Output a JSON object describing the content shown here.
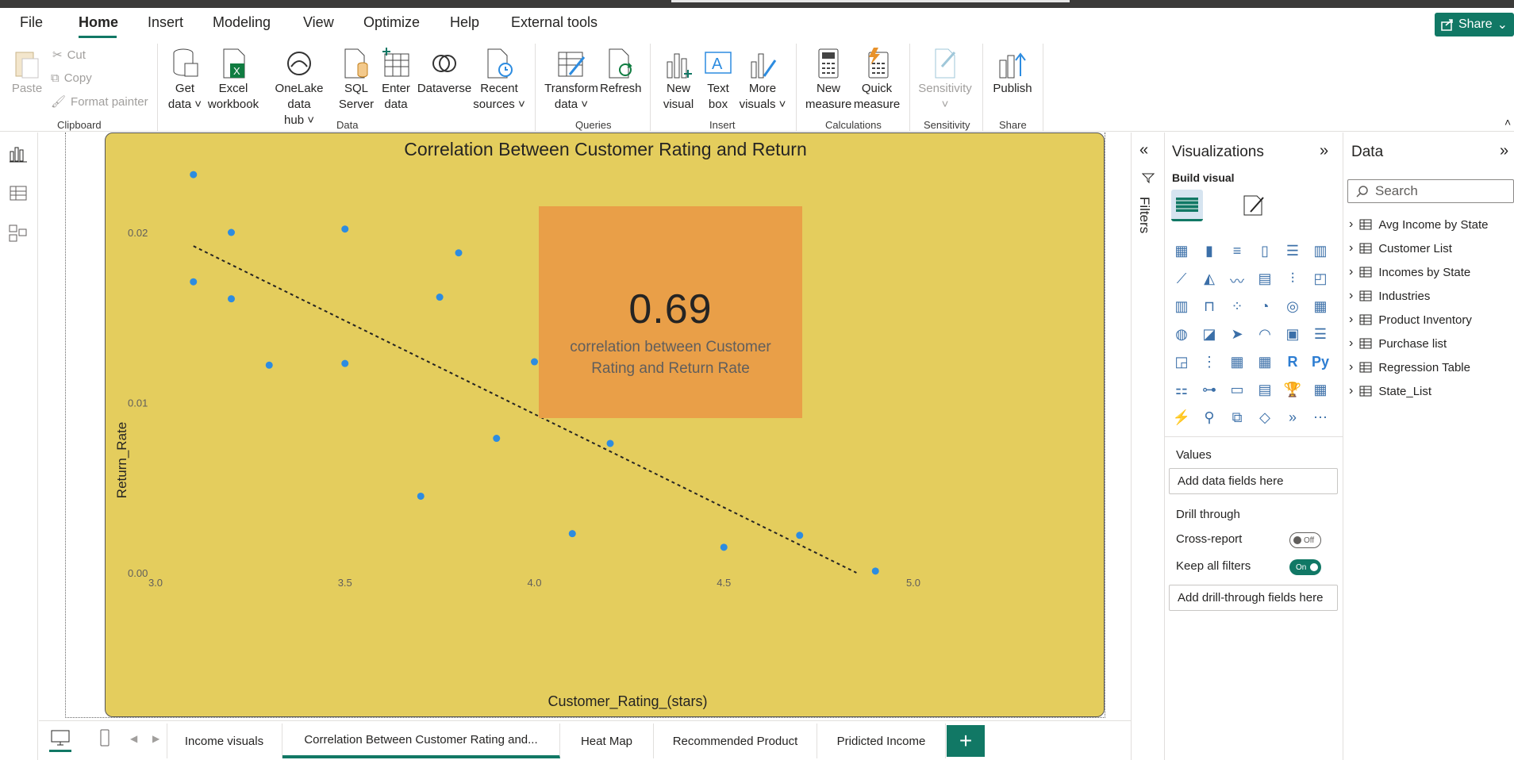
{
  "menu": {
    "tabs": [
      "File",
      "Home",
      "Insert",
      "Modeling",
      "View",
      "Optimize",
      "Help",
      "External tools"
    ],
    "active_tab": "Home",
    "share_label": "Share"
  },
  "ribbon": {
    "clipboard": {
      "paste": "Paste",
      "cut": "Cut",
      "copy": "Copy",
      "format_painter": "Format painter",
      "group": "Clipboard"
    },
    "data": {
      "get_data": [
        "Get",
        "data"
      ],
      "excel": [
        "Excel",
        "workbook"
      ],
      "onelake": [
        "OneLake data",
        "hub"
      ],
      "sql": [
        "SQL",
        "Server"
      ],
      "enter": [
        "Enter",
        "data"
      ],
      "dataverse": "Dataverse",
      "recent": [
        "Recent",
        "sources"
      ],
      "group": "Data"
    },
    "queries": {
      "transform": [
        "Transform",
        "data"
      ],
      "refresh": "Refresh",
      "group": "Queries"
    },
    "insert": {
      "new_visual": [
        "New",
        "visual"
      ],
      "text_box": [
        "Text",
        "box"
      ],
      "more_visuals": [
        "More",
        "visuals"
      ],
      "group": "Insert"
    },
    "calculations": {
      "new_measure": [
        "New",
        "measure"
      ],
      "quick_measure": [
        "Quick",
        "measure"
      ],
      "group": "Calculations"
    },
    "sensitivity": {
      "label": "Sensitivity",
      "group": "Sensitivity"
    },
    "share": {
      "publish": "Publish",
      "group": "Share"
    }
  },
  "visual": {
    "card_value": "0.69",
    "card_label": "correlation between Customer Rating and Return Rate"
  },
  "chart_data": {
    "type": "scatter",
    "title": "Correlation Between Customer Rating and Return",
    "xlabel": "Customer_Rating_(stars)",
    "ylabel": "Return_Rate",
    "xlim": [
      3.0,
      5.0
    ],
    "ylim": [
      0.0,
      0.022
    ],
    "x_ticks": [
      "3.0",
      "3.5",
      "4.0",
      "4.5",
      "5.0"
    ],
    "y_ticks": [
      "0.00",
      "0.01",
      "0.02"
    ],
    "point_color": "#2d8ce0",
    "x": [
      3.1,
      3.1,
      3.2,
      3.2,
      3.3,
      3.5,
      3.5,
      3.7,
      3.75,
      3.8,
      3.9,
      4.0,
      4.1,
      4.2,
      4.5,
      4.7,
      4.9
    ],
    "y": [
      0.0234,
      0.0171,
      0.02,
      0.0161,
      0.0122,
      0.0202,
      0.0123,
      0.0045,
      0.0162,
      0.0188,
      0.0079,
      0.0124,
      0.0023,
      0.0076,
      0.0015,
      0.0022,
      0.0001
    ],
    "trendline": {
      "style": "dashed",
      "x": [
        3.1,
        4.85
      ],
      "y": [
        0.0192,
        0.0
      ]
    }
  },
  "filters_label": "Filters",
  "viz_pane": {
    "title": "Visualizations",
    "build_visual": "Build visual",
    "values_label": "Values",
    "values_placeholder": "Add data fields here",
    "drill_through": "Drill through",
    "cross_report": "Cross-report",
    "cross_report_state": "Off",
    "keep_all_filters": "Keep all filters",
    "keep_all_filters_state": "On",
    "drill_placeholder": "Add drill-through fields here",
    "accent_color": "#117865"
  },
  "data_pane": {
    "title": "Data",
    "search_placeholder": "Search",
    "tables": [
      "Avg Income by State",
      "Customer List",
      "Incomes by State",
      "Industries",
      "Product Inventory",
      "Purchase list",
      "Regression Table",
      "State_List"
    ]
  },
  "page_tabs": [
    "Income visuals",
    "Correlation Between Customer Rating and...",
    "Heat Map",
    "Recommended Product",
    "Pridicted Income"
  ],
  "active_page": 1
}
